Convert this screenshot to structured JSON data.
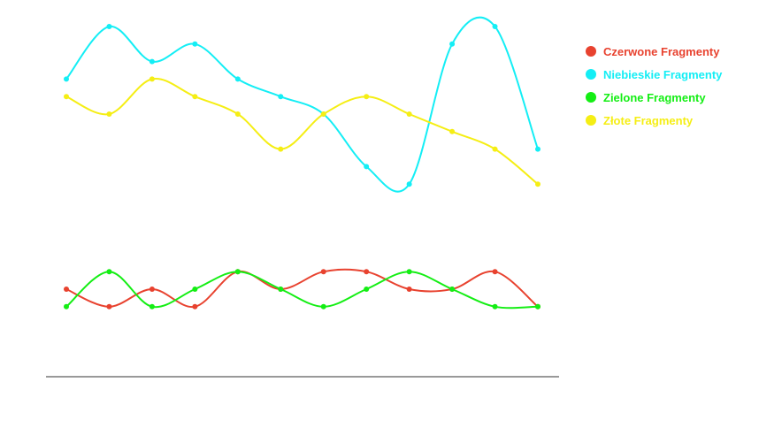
{
  "chart_data": {
    "type": "line",
    "smooth": true,
    "title": "",
    "xlabel": "",
    "ylabel": "",
    "x": [
      1,
      2,
      3,
      4,
      5,
      6,
      7,
      8,
      9,
      10,
      11,
      12
    ],
    "ylim": [
      0,
      20
    ],
    "grid": false,
    "legend_position": "top-right",
    "series": [
      {
        "name": "Czerwone Fragmenty",
        "color": "#e8422f",
        "values": [
          5,
          4,
          5,
          4,
          6,
          5,
          6,
          6,
          5,
          5,
          6,
          4
        ]
      },
      {
        "name": "Niebieskie Fragmenty",
        "color": "#14eef5",
        "values": [
          17,
          20,
          18,
          19,
          17,
          16,
          15,
          12,
          11,
          19,
          20,
          13
        ]
      },
      {
        "name": "Zielone Fragmenty",
        "color": "#14ee14",
        "values": [
          4,
          6,
          4,
          5,
          6,
          5,
          4,
          5,
          6,
          5,
          4,
          4
        ]
      },
      {
        "name": "Złote Fragmenty",
        "color": "#f5ee14",
        "values": [
          16,
          15,
          17,
          16,
          15,
          13,
          15,
          16,
          15,
          14,
          13,
          11
        ]
      }
    ]
  }
}
